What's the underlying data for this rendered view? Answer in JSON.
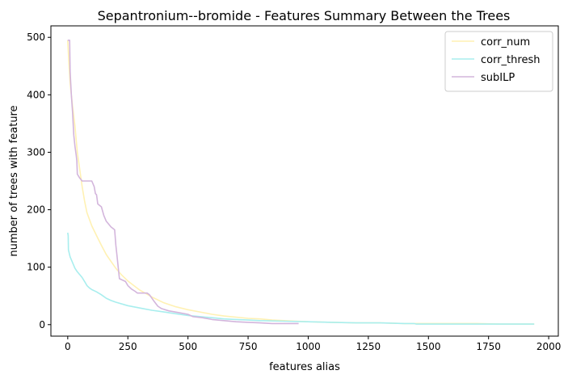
{
  "chart_data": {
    "type": "line",
    "title": "Sepantronium--bromide - Features Summary Between the Trees",
    "xlabel": "features alias",
    "ylabel": "number of trees with feature",
    "xlim": [
      -70,
      2040
    ],
    "ylim": [
      -20,
      520
    ],
    "xticks": [
      0,
      250,
      500,
      750,
      1000,
      1250,
      1500,
      1750,
      2000
    ],
    "yticks": [
      0,
      100,
      200,
      300,
      400,
      500
    ],
    "grid": false,
    "legend_position": "upper right",
    "series": [
      {
        "name": "corr_num",
        "color": "#fff1b3",
        "points": [
          [
            0,
            495
          ],
          [
            5,
            455
          ],
          [
            10,
            420
          ],
          [
            20,
            380
          ],
          [
            30,
            345
          ],
          [
            40,
            300
          ],
          [
            50,
            270
          ],
          [
            60,
            240
          ],
          [
            70,
            215
          ],
          [
            80,
            195
          ],
          [
            100,
            172
          ],
          [
            120,
            155
          ],
          [
            140,
            138
          ],
          [
            160,
            122
          ],
          [
            180,
            110
          ],
          [
            200,
            98
          ],
          [
            225,
            86
          ],
          [
            250,
            76
          ],
          [
            300,
            60
          ],
          [
            350,
            48
          ],
          [
            400,
            38
          ],
          [
            450,
            31
          ],
          [
            500,
            26
          ],
          [
            550,
            22
          ],
          [
            600,
            18
          ],
          [
            650,
            15
          ],
          [
            700,
            13
          ],
          [
            750,
            11
          ],
          [
            800,
            10
          ],
          [
            850,
            8
          ],
          [
            900,
            7
          ],
          [
            950,
            6
          ],
          [
            1000,
            5
          ],
          [
            1100,
            4
          ],
          [
            1200,
            3
          ],
          [
            1300,
            3
          ],
          [
            1400,
            2
          ],
          [
            1500,
            2
          ],
          [
            1600,
            2
          ],
          [
            1700,
            2
          ],
          [
            1800,
            1
          ],
          [
            1900,
            1
          ],
          [
            1940,
            1
          ]
        ]
      },
      {
        "name": "corr_thresh",
        "color": "#a8eeee",
        "points": [
          [
            0,
            160
          ],
          [
            2,
            155
          ],
          [
            3,
            130
          ],
          [
            10,
            118
          ],
          [
            20,
            108
          ],
          [
            30,
            98
          ],
          [
            40,
            92
          ],
          [
            50,
            87
          ],
          [
            60,
            82
          ],
          [
            70,
            75
          ],
          [
            80,
            68
          ],
          [
            90,
            64
          ],
          [
            100,
            61
          ],
          [
            120,
            57
          ],
          [
            140,
            52
          ],
          [
            160,
            46
          ],
          [
            180,
            42
          ],
          [
            200,
            39
          ],
          [
            250,
            33
          ],
          [
            300,
            29
          ],
          [
            350,
            25
          ],
          [
            400,
            22
          ],
          [
            450,
            19
          ],
          [
            500,
            16
          ],
          [
            550,
            14
          ],
          [
            600,
            12
          ],
          [
            650,
            10
          ],
          [
            700,
            9
          ],
          [
            750,
            8
          ],
          [
            800,
            7
          ],
          [
            900,
            6
          ],
          [
            1000,
            5
          ],
          [
            1100,
            4
          ],
          [
            1200,
            3
          ],
          [
            1300,
            3
          ],
          [
            1400,
            2
          ],
          [
            1440,
            2
          ],
          [
            1450,
            1
          ],
          [
            1600,
            1
          ],
          [
            1800,
            1
          ],
          [
            1940,
            1
          ]
        ]
      },
      {
        "name": "subILP",
        "color": "#d3b5dc",
        "points": [
          [
            0,
            495
          ],
          [
            8,
            495
          ],
          [
            10,
            440
          ],
          [
            15,
            400
          ],
          [
            20,
            370
          ],
          [
            25,
            330
          ],
          [
            30,
            310
          ],
          [
            35,
            295
          ],
          [
            38,
            285
          ],
          [
            40,
            262
          ],
          [
            50,
            255
          ],
          [
            60,
            250
          ],
          [
            100,
            250
          ],
          [
            110,
            240
          ],
          [
            115,
            228
          ],
          [
            120,
            226
          ],
          [
            125,
            210
          ],
          [
            140,
            205
          ],
          [
            150,
            190
          ],
          [
            160,
            180
          ],
          [
            170,
            175
          ],
          [
            180,
            170
          ],
          [
            195,
            165
          ],
          [
            200,
            138
          ],
          [
            205,
            120
          ],
          [
            210,
            100
          ],
          [
            215,
            80
          ],
          [
            240,
            75
          ],
          [
            250,
            68
          ],
          [
            265,
            62
          ],
          [
            280,
            58
          ],
          [
            290,
            55
          ],
          [
            330,
            55
          ],
          [
            340,
            52
          ],
          [
            350,
            46
          ],
          [
            360,
            40
          ],
          [
            375,
            32
          ],
          [
            390,
            28
          ],
          [
            420,
            24
          ],
          [
            460,
            21
          ],
          [
            500,
            18
          ],
          [
            520,
            14
          ],
          [
            560,
            12
          ],
          [
            600,
            9
          ],
          [
            650,
            7
          ],
          [
            700,
            5
          ],
          [
            750,
            4
          ],
          [
            800,
            3
          ],
          [
            850,
            2
          ],
          [
            900,
            2
          ],
          [
            960,
            2
          ]
        ]
      }
    ]
  }
}
